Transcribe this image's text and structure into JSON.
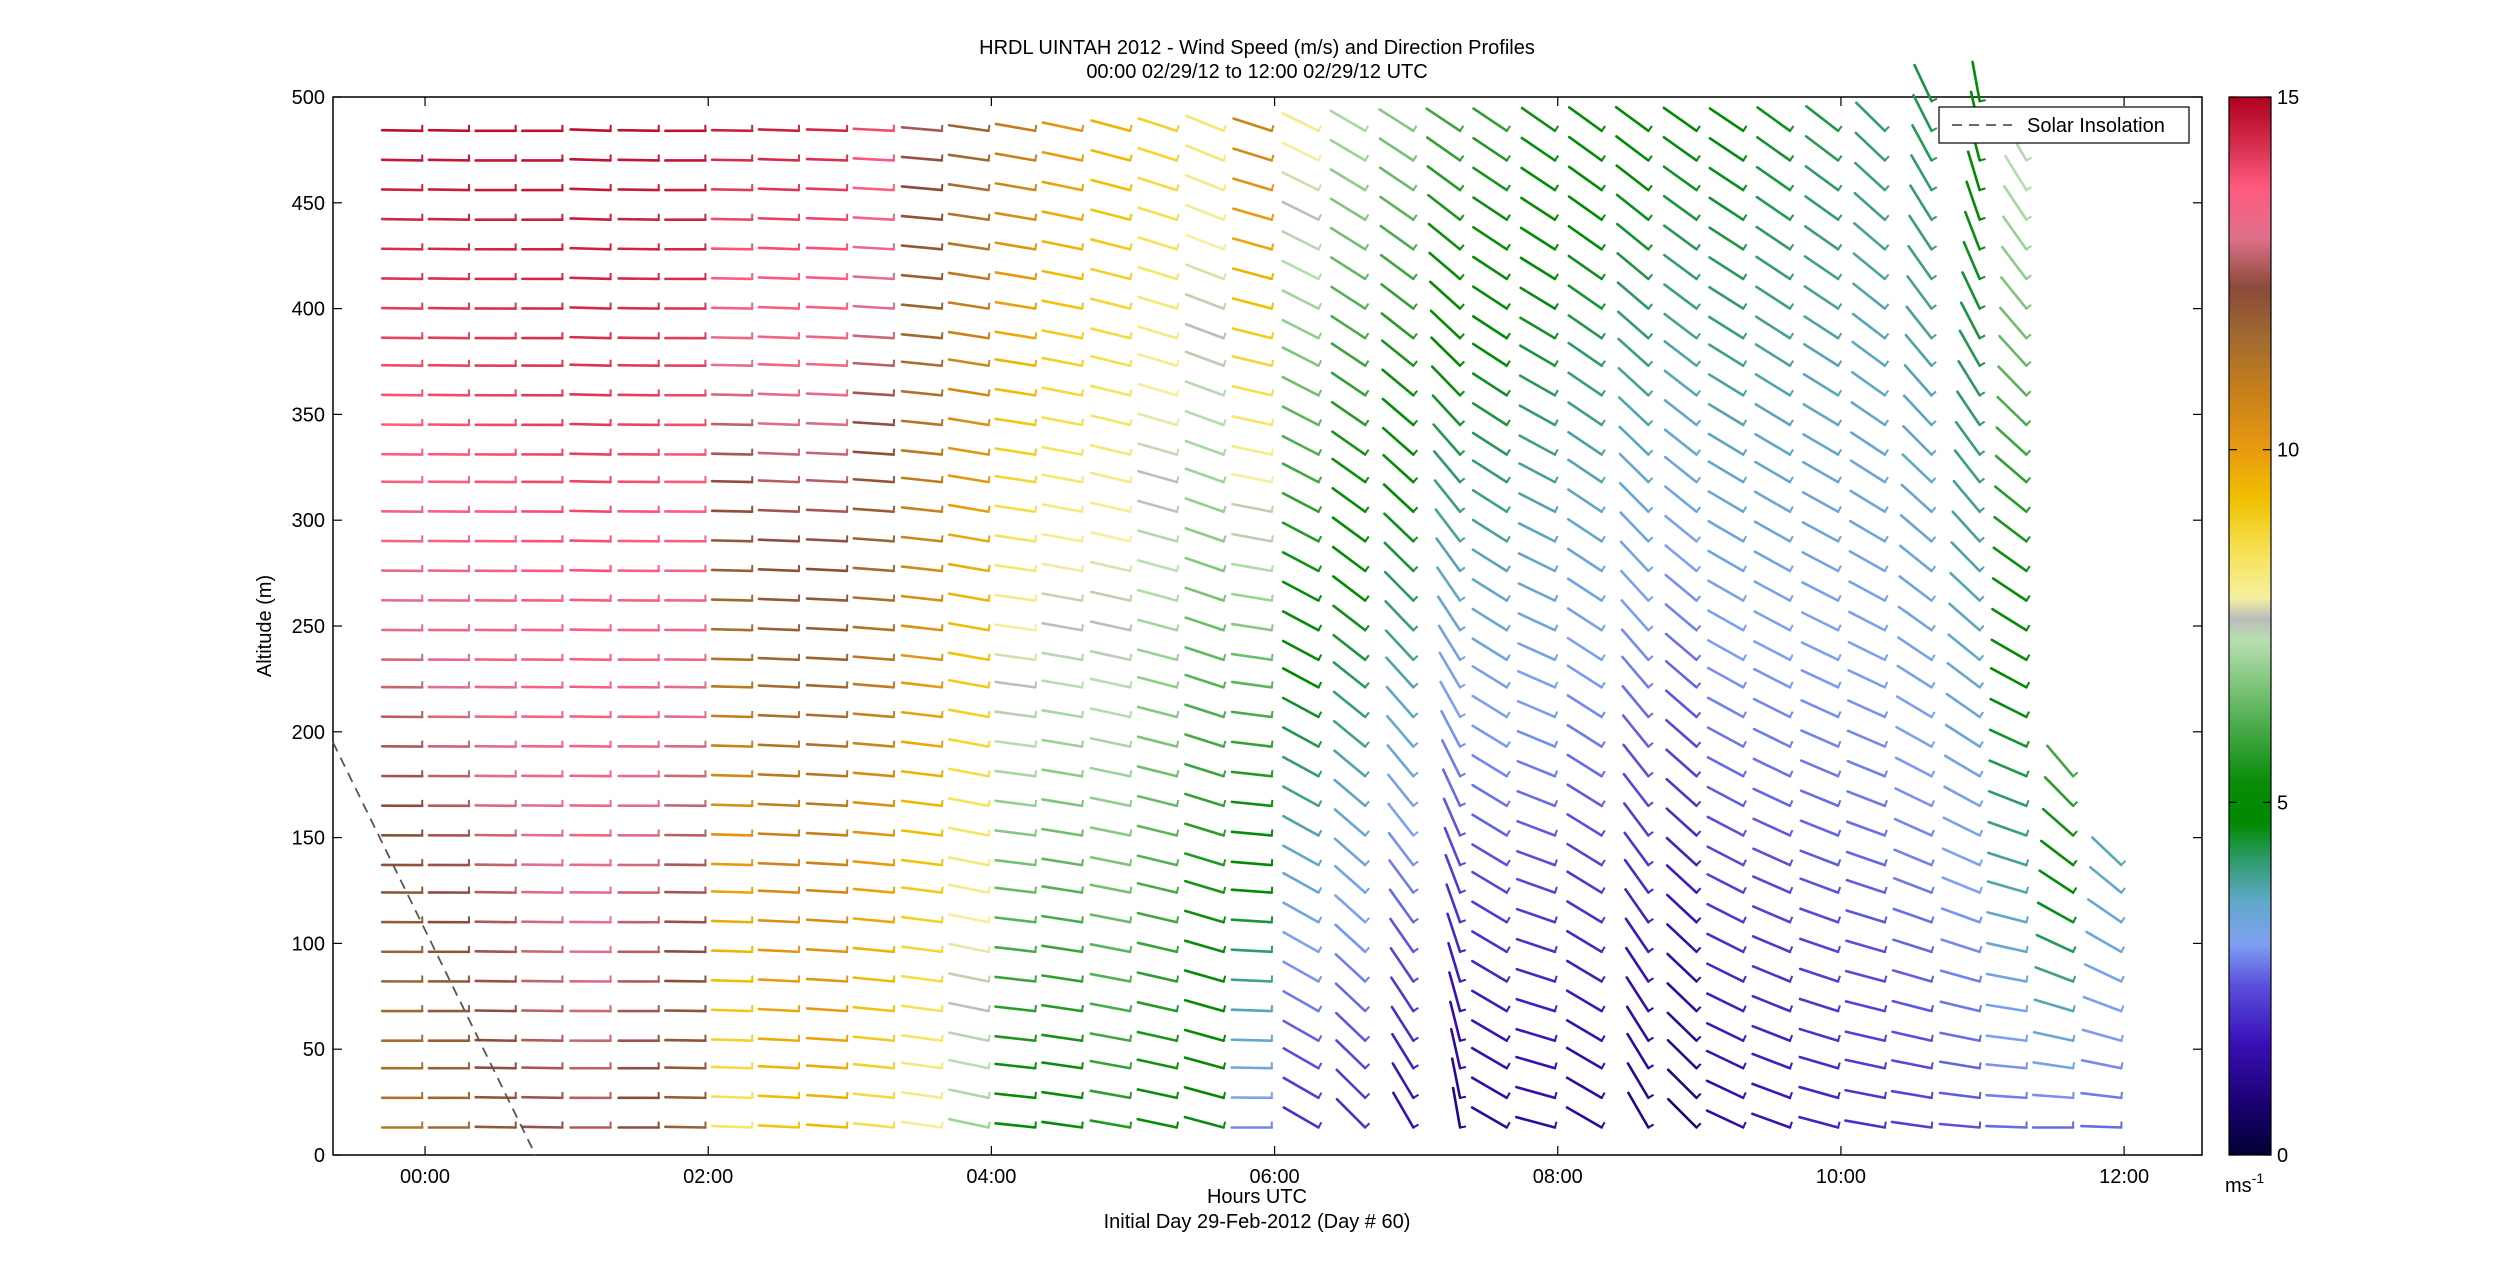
{
  "chart_data": {
    "type": "wind-barb-profile",
    "title": "HRDL UINTAH 2012 - Wind Speed (m/s) and Direction Profiles",
    "subtitle": "00:00 02/29/12 to 12:00 02/29/12  UTC",
    "xlabel": "Hours UTC",
    "xlabel2": "Initial Day 29-Feb-2012 (Day # 60)",
    "ylabel": "Altitude (m)",
    "xlim": [
      -0.65,
      12.55
    ],
    "ylim": [
      0,
      500
    ],
    "x_ticks": [
      0,
      2,
      4,
      6,
      8,
      10,
      12
    ],
    "x_tick_labels": [
      "00:00",
      "02:00",
      "04:00",
      "06:00",
      "08:00",
      "10:00",
      "12:00"
    ],
    "y_ticks": [
      0,
      50,
      100,
      150,
      200,
      250,
      300,
      350,
      400,
      450,
      500
    ],
    "y_tick_labels": [
      "0",
      "50",
      "100",
      "150",
      "200",
      "250",
      "300",
      "350",
      "400",
      "450",
      "500"
    ],
    "colorbar": {
      "range": [
        0,
        15
      ],
      "ticks": [
        0,
        5,
        10,
        15
      ],
      "tick_labels": [
        "0",
        "5",
        "10",
        "15"
      ],
      "unit_label": "ms",
      "unit_exponent": "-1",
      "stops": [
        {
          "v": 0.0,
          "c": "#000033"
        },
        {
          "v": 0.7,
          "c": "#1a0070"
        },
        {
          "v": 1.6,
          "c": "#3a10b8"
        },
        {
          "v": 2.4,
          "c": "#5a50dc"
        },
        {
          "v": 3.0,
          "c": "#7fa0f2"
        },
        {
          "v": 3.6,
          "c": "#60a8c8"
        },
        {
          "v": 4.2,
          "c": "#2e9a6a"
        },
        {
          "v": 4.7,
          "c": "#008a00"
        },
        {
          "v": 5.3,
          "c": "#0a8c0a"
        },
        {
          "v": 6.2,
          "c": "#55b055"
        },
        {
          "v": 7.3,
          "c": "#b8e0b0"
        },
        {
          "v": 7.6,
          "c": "#bbbbbb"
        },
        {
          "v": 7.9,
          "c": "#f5f0a0"
        },
        {
          "v": 8.6,
          "c": "#f6e050"
        },
        {
          "v": 9.3,
          "c": "#f0c000"
        },
        {
          "v": 10.0,
          "c": "#e89a10"
        },
        {
          "v": 10.8,
          "c": "#c8801a"
        },
        {
          "v": 11.6,
          "c": "#a06a30"
        },
        {
          "v": 12.3,
          "c": "#8a4a3a"
        },
        {
          "v": 13.0,
          "c": "#e0708a"
        },
        {
          "v": 13.7,
          "c": "#ff5a80"
        },
        {
          "v": 14.3,
          "c": "#d83050"
        },
        {
          "v": 15.0,
          "c": "#b00020"
        }
      ]
    },
    "legend": {
      "position": "top-right",
      "entries": [
        "Solar Insolation"
      ],
      "style": "dashed",
      "color": "#555555"
    },
    "solar_insolation": {
      "x": [
        -0.65,
        0.78
      ],
      "y": [
        195,
        0
      ]
    },
    "profile_times": [
      -0.02,
      0.31,
      0.64,
      0.97,
      1.31,
      1.65,
      1.98,
      2.31,
      2.64,
      2.98,
      3.31,
      3.65,
      3.98,
      4.31,
      4.64,
      4.98,
      5.31,
      5.64,
      5.98,
      6.31,
      6.64,
      6.98,
      7.31,
      7.64,
      7.98,
      8.31,
      8.64,
      8.98,
      9.31,
      9.64,
      9.98,
      10.31,
      10.64,
      10.98,
      11.31,
      11.64,
      11.98
    ],
    "altitudes": [
      13,
      27,
      41,
      54,
      68,
      82,
      96,
      110,
      124,
      137,
      151,
      165,
      179,
      193,
      207,
      221,
      234,
      248,
      262,
      276,
      290,
      304,
      318,
      331,
      345,
      359,
      373,
      386,
      400,
      414,
      428,
      442,
      456,
      470,
      484,
      498
    ],
    "profiles": [
      {
        "time": -0.02,
        "top": 490,
        "dir_bottom": 270,
        "dir_top": 271,
        "speed_bottom": 11.2,
        "speed_top": 14.8
      },
      {
        "time": 0.31,
        "top": 490,
        "dir_bottom": 270,
        "dir_top": 271,
        "speed_bottom": 11.6,
        "speed_top": 14.8
      },
      {
        "time": 0.64,
        "top": 490,
        "dir_bottom": 271,
        "dir_top": 270,
        "speed_bottom": 12.0,
        "speed_top": 14.8
      },
      {
        "time": 0.97,
        "top": 490,
        "dir_bottom": 271,
        "dir_top": 270,
        "speed_bottom": 12.4,
        "speed_top": 14.8
      },
      {
        "time": 1.31,
        "top": 490,
        "dir_bottom": 270,
        "dir_top": 272,
        "speed_bottom": 12.6,
        "speed_top": 14.8
      },
      {
        "time": 1.65,
        "top": 490,
        "dir_bottom": 270,
        "dir_top": 271,
        "speed_bottom": 12.2,
        "speed_top": 14.8
      },
      {
        "time": 1.98,
        "top": 490,
        "dir_bottom": 271,
        "dir_top": 270,
        "speed_bottom": 11.8,
        "speed_top": 14.8
      },
      {
        "time": 2.31,
        "top": 490,
        "dir_bottom": 272,
        "dir_top": 271,
        "speed_bottom": 8.4,
        "speed_top": 14.6
      },
      {
        "time": 2.64,
        "top": 490,
        "dir_bottom": 273,
        "dir_top": 272,
        "speed_bottom": 9.2,
        "speed_top": 14.6
      },
      {
        "time": 2.98,
        "top": 490,
        "dir_bottom": 274,
        "dir_top": 272,
        "speed_bottom": 9.4,
        "speed_top": 14.5
      },
      {
        "time": 3.31,
        "top": 490,
        "dir_bottom": 276,
        "dir_top": 273,
        "speed_bottom": 8.6,
        "speed_top": 14.0
      },
      {
        "time": 3.65,
        "top": 490,
        "dir_bottom": 278,
        "dir_top": 275,
        "speed_bottom": 8.0,
        "speed_top": 12.6
      },
      {
        "time": 3.98,
        "top": 490,
        "dir_bottom": 282,
        "dir_top": 278,
        "speed_bottom": 7.0,
        "speed_top": 11.8
      },
      {
        "time": 4.31,
        "top": 490,
        "dir_bottom": 276,
        "dir_top": 280,
        "speed_bottom": 5.0,
        "speed_top": 11.0
      },
      {
        "time": 4.64,
        "top": 490,
        "dir_bottom": 278,
        "dir_top": 282,
        "speed_bottom": 5.0,
        "speed_top": 10.2
      },
      {
        "time": 4.98,
        "top": 490,
        "dir_bottom": 280,
        "dir_top": 285,
        "speed_bottom": 5.6,
        "speed_top": 9.6
      },
      {
        "time": 5.31,
        "top": 490,
        "dir_bottom": 282,
        "dir_top": 288,
        "speed_bottom": 5.2,
        "speed_top": 9.0
      },
      {
        "time": 5.64,
        "top": 490,
        "dir_bottom": 285,
        "dir_top": 292,
        "speed_bottom": 4.6,
        "speed_top": 8.4
      },
      {
        "time": 5.98,
        "top": 490,
        "dir_bottom": 270,
        "dir_top": 288,
        "speed_bottom": 2.8,
        "speed_top": 10.8
      },
      {
        "time": 6.31,
        "top": 490,
        "dir_bottom": 300,
        "dir_top": 296,
        "speed_bottom": 2.0,
        "speed_top": 8.2
      },
      {
        "time": 6.64,
        "top": 490,
        "dir_bottom": 315,
        "dir_top": 300,
        "speed_bottom": 2.0,
        "speed_top": 7.2
      },
      {
        "time": 6.98,
        "top": 490,
        "dir_bottom": 330,
        "dir_top": 302,
        "speed_bottom": 1.5,
        "speed_top": 6.8
      },
      {
        "time": 7.31,
        "top": 490,
        "dir_bottom": 350,
        "dir_top": 303,
        "speed_bottom": 1.0,
        "speed_top": 6.0
      },
      {
        "time": 7.64,
        "top": 490,
        "dir_bottom": 300,
        "dir_top": 304,
        "speed_bottom": 1.2,
        "speed_top": 5.8
      },
      {
        "time": 7.98,
        "top": 490,
        "dir_bottom": 285,
        "dir_top": 305,
        "speed_bottom": 1.3,
        "speed_top": 5.4
      },
      {
        "time": 8.31,
        "top": 490,
        "dir_bottom": 300,
        "dir_top": 306,
        "speed_bottom": 1.2,
        "speed_top": 5.2
      },
      {
        "time": 8.64,
        "top": 490,
        "dir_bottom": 330,
        "dir_top": 306,
        "speed_bottom": 1.0,
        "speed_top": 5.0
      },
      {
        "time": 8.98,
        "top": 490,
        "dir_bottom": 315,
        "dir_top": 305,
        "speed_bottom": 0.8,
        "speed_top": 4.8
      },
      {
        "time": 9.31,
        "top": 490,
        "dir_bottom": 295,
        "dir_top": 304,
        "speed_bottom": 1.4,
        "speed_top": 4.8
      },
      {
        "time": 9.64,
        "top": 490,
        "dir_bottom": 290,
        "dir_top": 306,
        "speed_bottom": 1.6,
        "speed_top": 4.6
      },
      {
        "time": 9.98,
        "top": 490,
        "dir_bottom": 285,
        "dir_top": 308,
        "speed_bottom": 1.8,
        "speed_top": 4.4
      },
      {
        "time": 10.31,
        "top": 490,
        "dir_bottom": 280,
        "dir_top": 315,
        "speed_bottom": 2.0,
        "speed_top": 4.2
      },
      {
        "time": 10.64,
        "top": 500,
        "dir_bottom": 278,
        "dir_top": 335,
        "speed_bottom": 2.2,
        "speed_top": 4.4
      },
      {
        "time": 10.98,
        "top": 500,
        "dir_bottom": 275,
        "dir_top": 350,
        "speed_bottom": 2.4,
        "speed_top": 5.0
      },
      {
        "time": 11.31,
        "top": 470,
        "dir_bottom": 272,
        "dir_top": 330,
        "speed_bottom": 2.6,
        "speed_top": 7.4
      },
      {
        "time": 11.64,
        "top": 180,
        "dir_bottom": 270,
        "dir_top": 320,
        "speed_bottom": 2.6,
        "speed_top": 6.0
      },
      {
        "time": 11.98,
        "top": 150,
        "dir_bottom": 272,
        "dir_top": 318,
        "speed_bottom": 2.6,
        "speed_top": 3.8
      }
    ]
  }
}
